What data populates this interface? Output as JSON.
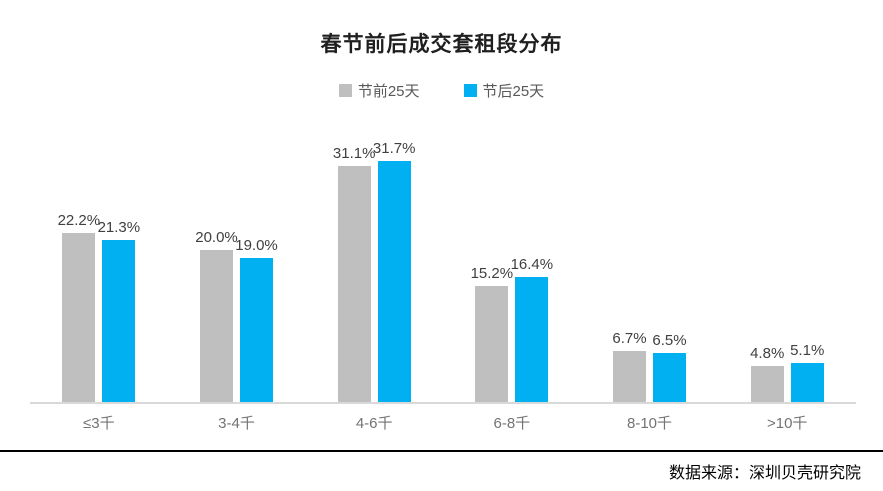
{
  "title": "春节前后成交套租段分布",
  "legend": {
    "pre_label": "节前25天",
    "post_label": "节后25天"
  },
  "source": "数据来源：深圳贝壳研究院",
  "colors": {
    "pre_series": "#bfbfbf",
    "post_series": "#00b0f0",
    "axis_line": "#d9d9d9",
    "divider_line": "#000000",
    "label_text": "#404040",
    "category_text": "#737373"
  },
  "chart_data": {
    "type": "bar",
    "title": "春节前后成交套租段分布",
    "categories": [
      "≤3千",
      "3-4千",
      "4-6千",
      "6-8千",
      "8-10千",
      ">10千"
    ],
    "series": [
      {
        "name": "节前25天",
        "color": "#bfbfbf",
        "values": [
          22.2,
          20.0,
          31.1,
          15.2,
          6.7,
          4.8
        ]
      },
      {
        "name": "节后25天",
        "color": "#00b0f0",
        "values": [
          21.3,
          19.0,
          31.7,
          16.4,
          6.5,
          5.1
        ]
      }
    ],
    "value_suffix": "%",
    "value_decimals": 1,
    "ylim": [
      0,
      35
    ],
    "grid": false,
    "y_axis_visible": false,
    "legend_position": "top",
    "data_labels": true,
    "source": "数据来源：深圳贝壳研究院"
  }
}
